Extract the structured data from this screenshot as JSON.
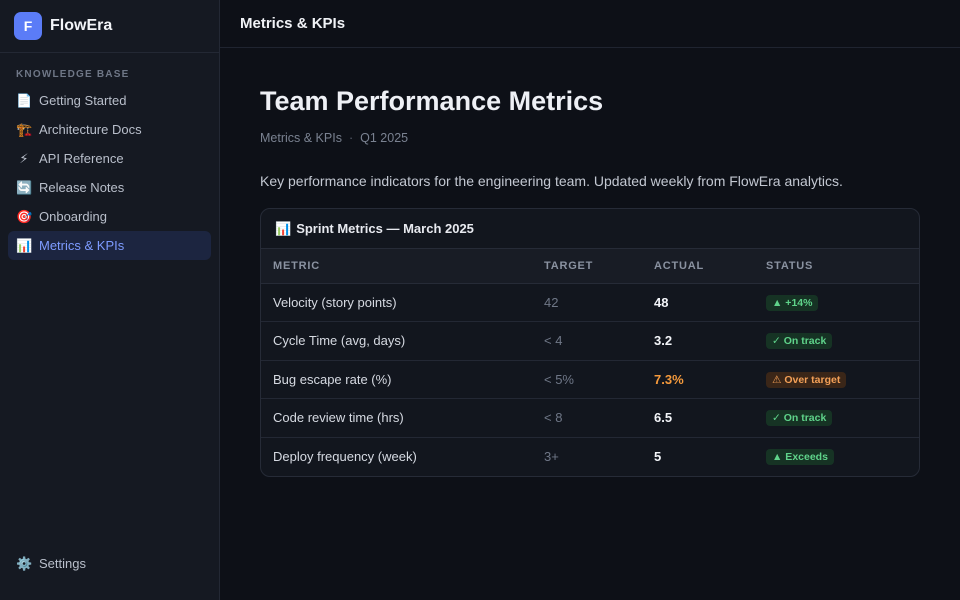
{
  "brand": {
    "logo_letter": "F",
    "name": "FlowEra"
  },
  "sidebar": {
    "section_label": "KNOWLEDGE BASE",
    "items": [
      {
        "icon": "📄",
        "label": "Getting Started"
      },
      {
        "icon": "🏗️",
        "label": "Architecture Docs"
      },
      {
        "icon": "⚡",
        "label": "API Reference"
      },
      {
        "icon": "🔄",
        "label": "Release Notes"
      },
      {
        "icon": "🎯",
        "label": "Onboarding"
      },
      {
        "icon": "📊",
        "label": "Metrics & KPIs",
        "active": true
      }
    ],
    "settings": {
      "icon": "⚙️",
      "label": "Settings"
    }
  },
  "topbar": {
    "title": "Metrics & KPIs"
  },
  "page": {
    "title": "Team Performance Metrics",
    "breadcrumb": "Metrics & KPIs",
    "separator": "·",
    "period": "Q1 2025",
    "description": "Key performance indicators for the engineering team. Updated weekly from FlowEra analytics."
  },
  "card": {
    "icon": "📊",
    "title": "Sprint Metrics — March 2025",
    "columns": [
      "METRIC",
      "TARGET",
      "ACTUAL",
      "STATUS"
    ],
    "rows": [
      {
        "metric": "Velocity (story points)",
        "target": "42",
        "actual": "48",
        "status": "▲ +14%",
        "tone": "good"
      },
      {
        "metric": "Cycle Time (avg, days)",
        "target": "< 4",
        "actual": "3.2",
        "status": "✓ On track",
        "tone": "good"
      },
      {
        "metric": "Bug escape rate (%)",
        "target": "< 5%",
        "actual": "7.3%",
        "status": "⚠ Over target",
        "tone": "warn"
      },
      {
        "metric": "Code review time (hrs)",
        "target": "< 8",
        "actual": "6.5",
        "status": "✓ On track",
        "tone": "good"
      },
      {
        "metric": "Deploy frequency (week)",
        "target": "3+",
        "actual": "5",
        "status": "▲ Exceeds",
        "tone": "good"
      }
    ]
  },
  "colors": {
    "accent": "#5b7cf7",
    "good": "#5fd38a",
    "warn": "#f59a3c"
  }
}
